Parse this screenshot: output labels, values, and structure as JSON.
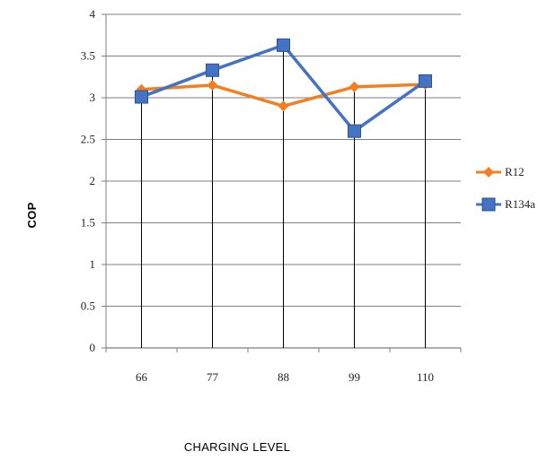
{
  "chart_data": {
    "type": "line",
    "categories": [
      "66",
      "77",
      "88",
      "99",
      "110"
    ],
    "series": [
      {
        "name": "R12",
        "values": [
          3.1,
          3.15,
          2.9,
          3.13,
          3.16
        ],
        "color": "#f47f20",
        "marker": "diamond"
      },
      {
        "name": "R134a",
        "values": [
          3.01,
          3.33,
          3.63,
          2.6,
          3.2
        ],
        "color": "#4472c4",
        "marker": "square"
      }
    ],
    "y_ticks": [
      "0",
      "0.5",
      "1",
      "1.5",
      "2",
      "2.5",
      "3",
      "3.5",
      "4"
    ],
    "ylim": [
      0,
      4
    ],
    "title": "",
    "xlabel": "CHARGING  LEVEL",
    "ylabel": "COP",
    "grid": true,
    "legend": "right"
  }
}
